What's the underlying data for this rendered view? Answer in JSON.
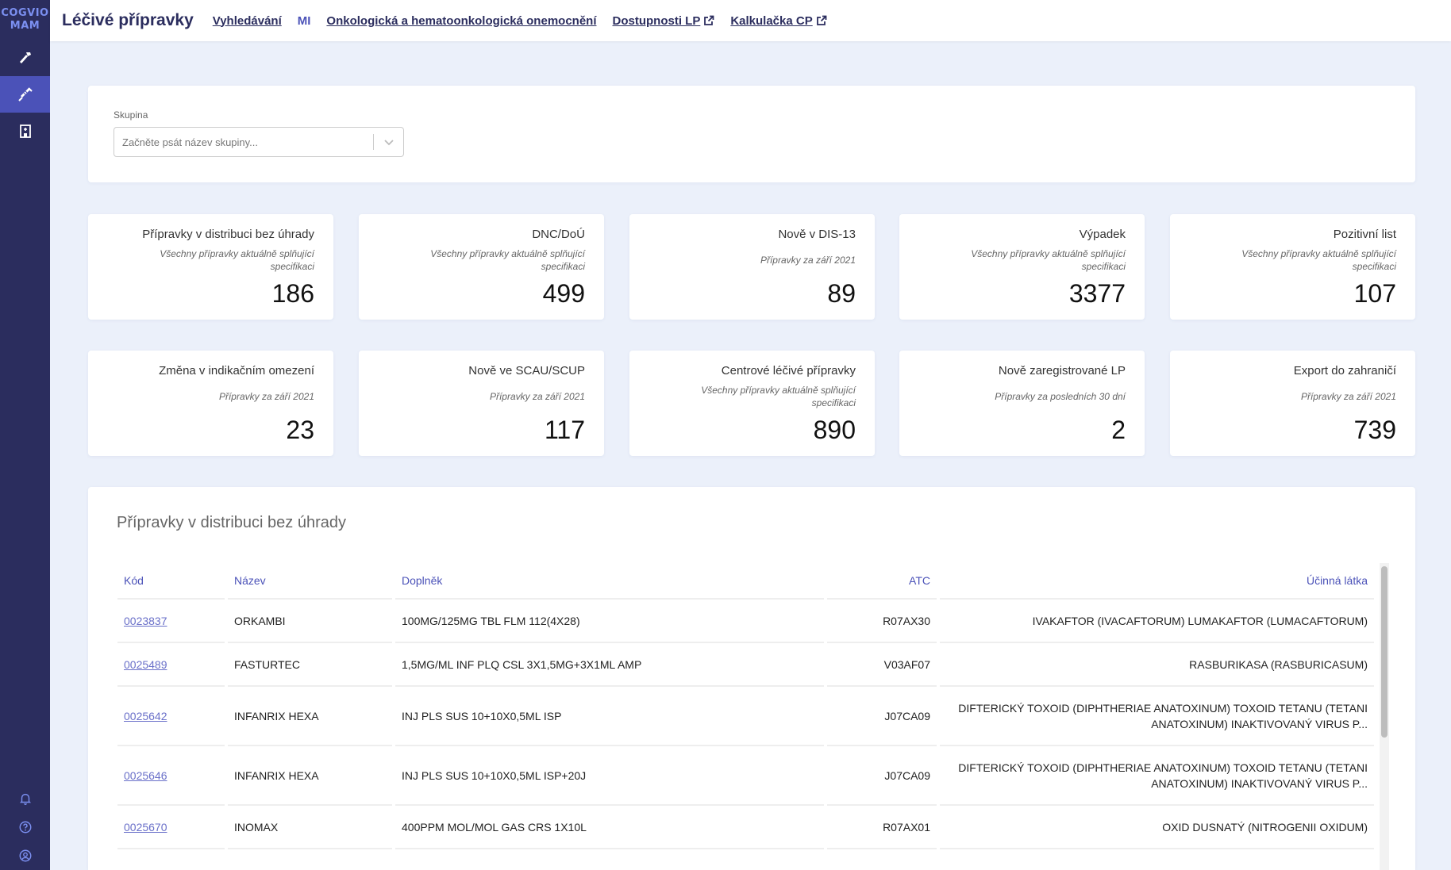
{
  "logo": {
    "line1": "COGVIO",
    "line2": "MAM"
  },
  "sidebar": {
    "items": [
      {
        "icon": "hammer-icon"
      },
      {
        "icon": "syringe-icon",
        "active": true
      },
      {
        "icon": "building-icon"
      }
    ],
    "bottom": [
      {
        "icon": "bell-icon"
      },
      {
        "icon": "help-icon"
      },
      {
        "icon": "user-icon"
      }
    ]
  },
  "header": {
    "title": "Léčivé přípravky",
    "nav": [
      {
        "label": "Vyhledávání"
      },
      {
        "label": "MI"
      },
      {
        "label": "Onkologická a hematoonkologická onemocnění"
      },
      {
        "label": "Dostupnosti LP"
      },
      {
        "label": "Kalkulačka CP"
      }
    ]
  },
  "filter": {
    "label": "Skupina",
    "placeholder": "Začněte psát název skupiny..."
  },
  "cards": [
    {
      "title": "Přípravky v distribuci bez úhrady",
      "subtitle": "Všechny přípravky aktuálně splňující specifikaci",
      "value": "186"
    },
    {
      "title": "DNC/DoÚ",
      "subtitle": "Všechny přípravky aktuálně splňující specifikaci",
      "value": "499"
    },
    {
      "title": "Nově v DIS-13",
      "subtitle": "Přípravky za září 2021",
      "value": "89"
    },
    {
      "title": "Výpadek",
      "subtitle": "Všechny přípravky aktuálně splňující specifikaci",
      "value": "3377"
    },
    {
      "title": "Pozitivní list",
      "subtitle": "Všechny přípravky aktuálně splňující specifikaci",
      "value": "107"
    },
    {
      "title": "Změna v indikačním omezení",
      "subtitle": "Přípravky za září 2021",
      "value": "23"
    },
    {
      "title": "Nově ve SCAU/SCUP",
      "subtitle": "Přípravky za září 2021",
      "value": "117"
    },
    {
      "title": "Centrové léčivé přípravky",
      "subtitle": "Všechny přípravky aktuálně splňující specifikaci",
      "value": "890"
    },
    {
      "title": "Nově zaregistrované LP",
      "subtitle": "Přípravky za posledních 30 dní",
      "value": "2"
    },
    {
      "title": "Export do zahraničí",
      "subtitle": "Přípravky za září 2021",
      "value": "739"
    }
  ],
  "table": {
    "title": "Přípravky v distribuci bez úhrady",
    "columns": [
      "Kód",
      "Název",
      "Doplněk",
      "ATC",
      "Účinná látka"
    ],
    "rows": [
      {
        "kod": "0023837",
        "nazev": "ORKAMBI",
        "doplnek": "100MG/125MG TBL FLM 112(4X28)",
        "atc": "R07AX30",
        "latka": "IVAKAFTOR (IVACAFTORUM) LUMAKAFTOR (LUMACAFTORUM)"
      },
      {
        "kod": "0025489",
        "nazev": "FASTURTEC",
        "doplnek": "1,5MG/ML INF PLQ CSL 3X1,5MG+3X1ML AMP",
        "atc": "V03AF07",
        "latka": "RASBURIKASA (RASBURICASUM)"
      },
      {
        "kod": "0025642",
        "nazev": "INFANRIX HEXA",
        "doplnek": "INJ PLS SUS 10+10X0,5ML ISP",
        "atc": "J07CA09",
        "latka": "DIFTERICKÝ TOXOID (DIPHTHERIAE ANATOXINUM) TOXOID TETANU (TETANI ANATOXINUM) INAKTIVOVANÝ VIRUS P..."
      },
      {
        "kod": "0025646",
        "nazev": "INFANRIX HEXA",
        "doplnek": "INJ PLS SUS 10+10X0,5ML ISP+20J",
        "atc": "J07CA09",
        "latka": "DIFTERICKÝ TOXOID (DIPHTHERIAE ANATOXINUM) TOXOID TETANU (TETANI ANATOXINUM) INAKTIVOVANÝ VIRUS P..."
      },
      {
        "kod": "0025670",
        "nazev": "INOMAX",
        "doplnek": "400PPM MOL/MOL GAS CRS 1X10L",
        "atc": "R07AX01",
        "latka": "OXID DUSNATÝ (NITROGENII OXIDUM)"
      }
    ]
  },
  "colors": {
    "sidebar": "#2b2d5e",
    "accent": "#4b52b8",
    "background": "#ebf0fa"
  }
}
